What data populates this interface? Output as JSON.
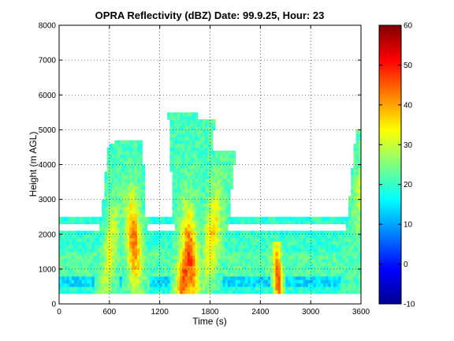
{
  "chart_data": {
    "type": "heatmap",
    "title": "OPRA Reflectivity (dBZ)  Date: 99.9.25, Hour: 23",
    "xlabel": "Time (s)",
    "ylabel": "Height (m AGL)",
    "xlim": [
      0,
      3600
    ],
    "ylim": [
      0,
      8000
    ],
    "x_ticks": [
      "0",
      "600",
      "1200",
      "1800",
      "2400",
      "3000",
      "3600"
    ],
    "y_ticks": [
      "0",
      "1000",
      "2000",
      "3000",
      "4000",
      "5000",
      "6000",
      "7000",
      "8000"
    ],
    "grid": true,
    "colorbar": {
      "range": [
        -10,
        60
      ],
      "ticks": [
        "-10",
        "0",
        "10",
        "20",
        "30",
        "40",
        "50",
        "60"
      ],
      "colormap": "jet"
    },
    "echo_base_m": 300,
    "layer_top_m": 2500,
    "gap_band_m": [
      2100,
      2250
    ],
    "cells": [
      {
        "center_s": 560,
        "width_s": 90,
        "top_m": 4600,
        "peak_dbz": 33,
        "peak_height_m": 1500
      },
      {
        "center_s": 920,
        "width_s": 100,
        "top_m": 4700,
        "peak_dbz": 43,
        "peak_height_m": 1800
      },
      {
        "center_s": 1480,
        "width_s": 110,
        "top_m": 5300,
        "peak_dbz": 46,
        "peak_height_m": 900
      },
      {
        "center_s": 1580,
        "width_s": 110,
        "top_m": 5500,
        "peak_dbz": 47,
        "peak_height_m": 1300
      },
      {
        "center_s": 1760,
        "width_s": 110,
        "top_m": 4400,
        "peak_dbz": 36,
        "peak_height_m": 2000
      },
      {
        "center_s": 2620,
        "width_s": 60,
        "top_m": 1800,
        "peak_dbz": 45,
        "peak_height_m": 700
      },
      {
        "center_s": 3480,
        "width_s": 80,
        "top_m": 5000,
        "peak_dbz": 30,
        "peak_height_m": 3500
      }
    ]
  }
}
